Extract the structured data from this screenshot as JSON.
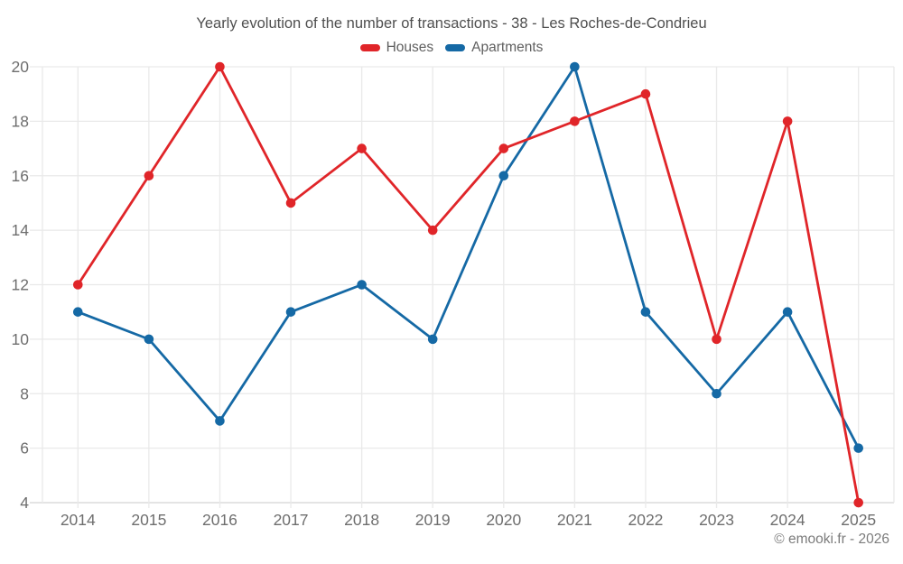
{
  "footer": "© emooki.fr - 2026",
  "chart_data": {
    "type": "line",
    "title": "Yearly evolution of the number of transactions - 38 - Les Roches-de-Condrieu",
    "x": [
      "2014",
      "2015",
      "2016",
      "2017",
      "2018",
      "2019",
      "2020",
      "2021",
      "2022",
      "2023",
      "2024",
      "2025"
    ],
    "series": [
      {
        "name": "Houses",
        "color": "#e02529",
        "values": [
          12,
          16,
          20,
          15,
          17,
          14,
          17,
          18,
          19,
          10,
          18,
          4
        ]
      },
      {
        "name": "Apartments",
        "color": "#1569a5",
        "values": [
          11,
          10,
          7,
          11,
          12,
          10,
          16,
          20,
          11,
          8,
          11,
          6
        ]
      }
    ],
    "xlabel": "",
    "ylabel": "",
    "ylim": [
      4,
      20
    ],
    "ytick_step": 2,
    "grid": true,
    "legend_position": "top",
    "marker": "circle"
  }
}
